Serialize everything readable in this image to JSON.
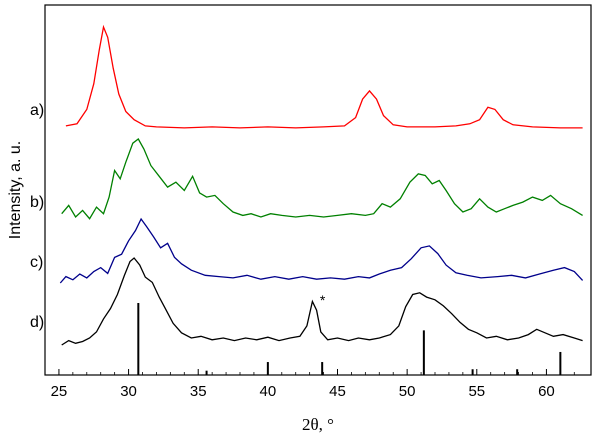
{
  "chart_data": {
    "type": "line",
    "title": "",
    "xlabel": "2θ, °",
    "ylabel": "Intensity, a. u.",
    "xlim": [
      24,
      63.2
    ],
    "x_ticks": [
      25,
      30,
      35,
      40,
      45,
      50,
      55,
      60
    ],
    "y_ticks": "none",
    "grid": false,
    "legend": "none",
    "series": [
      {
        "label": "a)",
        "color": "#ff0000",
        "points": [
          [
            25.5,
            0.04
          ],
          [
            26.3,
            0.06
          ],
          [
            27.0,
            0.2
          ],
          [
            27.5,
            0.45
          ],
          [
            27.9,
            0.78
          ],
          [
            28.2,
            1.0
          ],
          [
            28.5,
            0.9
          ],
          [
            28.9,
            0.6
          ],
          [
            29.3,
            0.35
          ],
          [
            29.8,
            0.18
          ],
          [
            30.4,
            0.1
          ],
          [
            31.2,
            0.04
          ],
          [
            32,
            0.03
          ],
          [
            34,
            0.02
          ],
          [
            36,
            0.03
          ],
          [
            38,
            0.02
          ],
          [
            40,
            0.03
          ],
          [
            42,
            0.02
          ],
          [
            44,
            0.03
          ],
          [
            45.5,
            0.04
          ],
          [
            46.3,
            0.12
          ],
          [
            46.8,
            0.3
          ],
          [
            47.3,
            0.38
          ],
          [
            47.8,
            0.3
          ],
          [
            48.3,
            0.14
          ],
          [
            49,
            0.05
          ],
          [
            50,
            0.03
          ],
          [
            52,
            0.03
          ],
          [
            53.5,
            0.04
          ],
          [
            54.5,
            0.06
          ],
          [
            55.2,
            0.1
          ],
          [
            55.8,
            0.22
          ],
          [
            56.3,
            0.2
          ],
          [
            56.9,
            0.1
          ],
          [
            57.6,
            0.05
          ],
          [
            59,
            0.03
          ],
          [
            61,
            0.02
          ],
          [
            62.6,
            0.02
          ]
        ]
      },
      {
        "label": "b)",
        "color": "#008000",
        "points": [
          [
            25.2,
            0.1
          ],
          [
            25.7,
            0.2
          ],
          [
            26.2,
            0.06
          ],
          [
            26.7,
            0.14
          ],
          [
            27.2,
            0.04
          ],
          [
            27.7,
            0.18
          ],
          [
            28.2,
            0.1
          ],
          [
            28.6,
            0.3
          ],
          [
            29.0,
            0.62
          ],
          [
            29.4,
            0.52
          ],
          [
            29.8,
            0.72
          ],
          [
            30.3,
            0.95
          ],
          [
            30.7,
            1.0
          ],
          [
            31.1,
            0.88
          ],
          [
            31.6,
            0.68
          ],
          [
            32.2,
            0.55
          ],
          [
            32.8,
            0.42
          ],
          [
            33.4,
            0.48
          ],
          [
            34.0,
            0.38
          ],
          [
            34.6,
            0.55
          ],
          [
            35.1,
            0.35
          ],
          [
            35.6,
            0.3
          ],
          [
            36.2,
            0.32
          ],
          [
            36.8,
            0.22
          ],
          [
            37.5,
            0.12
          ],
          [
            38.2,
            0.08
          ],
          [
            38.8,
            0.1
          ],
          [
            39.5,
            0.06
          ],
          [
            40.2,
            0.1
          ],
          [
            41,
            0.08
          ],
          [
            42,
            0.06
          ],
          [
            43,
            0.08
          ],
          [
            44,
            0.06
          ],
          [
            45,
            0.08
          ],
          [
            46,
            0.1
          ],
          [
            47,
            0.08
          ],
          [
            47.6,
            0.1
          ],
          [
            48.2,
            0.22
          ],
          [
            48.8,
            0.18
          ],
          [
            49.5,
            0.28
          ],
          [
            50.2,
            0.48
          ],
          [
            50.8,
            0.58
          ],
          [
            51.3,
            0.56
          ],
          [
            51.8,
            0.46
          ],
          [
            52.3,
            0.5
          ],
          [
            52.8,
            0.38
          ],
          [
            53.4,
            0.22
          ],
          [
            54,
            0.12
          ],
          [
            54.6,
            0.16
          ],
          [
            55.2,
            0.28
          ],
          [
            55.8,
            0.18
          ],
          [
            56.4,
            0.12
          ],
          [
            57,
            0.16
          ],
          [
            57.6,
            0.2
          ],
          [
            58.3,
            0.24
          ],
          [
            59,
            0.3
          ],
          [
            59.7,
            0.26
          ],
          [
            60.3,
            0.32
          ],
          [
            61,
            0.22
          ],
          [
            61.8,
            0.16
          ],
          [
            62.6,
            0.08
          ]
        ]
      },
      {
        "label": "c)",
        "color": "#00008b",
        "points": [
          [
            25.1,
            0.0
          ],
          [
            25.5,
            0.1
          ],
          [
            26,
            0.05
          ],
          [
            26.5,
            0.14
          ],
          [
            27,
            0.08
          ],
          [
            27.5,
            0.18
          ],
          [
            28,
            0.24
          ],
          [
            28.5,
            0.15
          ],
          [
            29,
            0.4
          ],
          [
            29.5,
            0.45
          ],
          [
            30,
            0.66
          ],
          [
            30.5,
            0.82
          ],
          [
            30.9,
            1.0
          ],
          [
            31.3,
            0.88
          ],
          [
            31.8,
            0.72
          ],
          [
            32.3,
            0.55
          ],
          [
            32.8,
            0.62
          ],
          [
            33.3,
            0.4
          ],
          [
            33.8,
            0.3
          ],
          [
            34.5,
            0.2
          ],
          [
            35.5,
            0.12
          ],
          [
            36.5,
            0.1
          ],
          [
            37.5,
            0.08
          ],
          [
            38.5,
            0.12
          ],
          [
            39.5,
            0.06
          ],
          [
            40.5,
            0.1
          ],
          [
            41.5,
            0.06
          ],
          [
            42.5,
            0.1
          ],
          [
            43.5,
            0.06
          ],
          [
            44.5,
            0.08
          ],
          [
            45.5,
            0.06
          ],
          [
            46.5,
            0.1
          ],
          [
            47.3,
            0.08
          ],
          [
            48,
            0.14
          ],
          [
            48.8,
            0.2
          ],
          [
            49.6,
            0.24
          ],
          [
            50.3,
            0.38
          ],
          [
            51,
            0.55
          ],
          [
            51.6,
            0.58
          ],
          [
            52.2,
            0.46
          ],
          [
            52.8,
            0.28
          ],
          [
            53.5,
            0.16
          ],
          [
            54.3,
            0.12
          ],
          [
            55.3,
            0.08
          ],
          [
            56.5,
            0.1
          ],
          [
            57.5,
            0.12
          ],
          [
            58.5,
            0.08
          ],
          [
            59.5,
            0.14
          ],
          [
            60.5,
            0.2
          ],
          [
            61.3,
            0.24
          ],
          [
            62,
            0.18
          ],
          [
            62.6,
            0.04
          ]
        ]
      },
      {
        "label": "d)",
        "color": "#000000",
        "points": [
          [
            25.2,
            0.0
          ],
          [
            25.7,
            0.05
          ],
          [
            26.2,
            0.02
          ],
          [
            26.7,
            0.04
          ],
          [
            27.2,
            0.08
          ],
          [
            27.7,
            0.15
          ],
          [
            28.2,
            0.3
          ],
          [
            28.7,
            0.42
          ],
          [
            29.2,
            0.58
          ],
          [
            29.7,
            0.8
          ],
          [
            30.1,
            0.96
          ],
          [
            30.4,
            1.0
          ],
          [
            30.8,
            0.92
          ],
          [
            31.2,
            0.78
          ],
          [
            31.7,
            0.72
          ],
          [
            32.2,
            0.55
          ],
          [
            32.7,
            0.4
          ],
          [
            33.2,
            0.25
          ],
          [
            33.8,
            0.14
          ],
          [
            34.5,
            0.08
          ],
          [
            35.2,
            0.1
          ],
          [
            36,
            0.06
          ],
          [
            36.8,
            0.08
          ],
          [
            37.6,
            0.05
          ],
          [
            38.4,
            0.08
          ],
          [
            39.2,
            0.06
          ],
          [
            40,
            0.09
          ],
          [
            40.8,
            0.05
          ],
          [
            41.6,
            0.08
          ],
          [
            42.3,
            0.1
          ],
          [
            42.8,
            0.22
          ],
          [
            43.2,
            0.5
          ],
          [
            43.5,
            0.4
          ],
          [
            43.8,
            0.15
          ],
          [
            44.3,
            0.06
          ],
          [
            45,
            0.08
          ],
          [
            45.8,
            0.05
          ],
          [
            46.5,
            0.08
          ],
          [
            47.3,
            0.06
          ],
          [
            48,
            0.08
          ],
          [
            48.8,
            0.12
          ],
          [
            49.4,
            0.22
          ],
          [
            49.9,
            0.44
          ],
          [
            50.4,
            0.58
          ],
          [
            50.9,
            0.6
          ],
          [
            51.4,
            0.55
          ],
          [
            52,
            0.52
          ],
          [
            52.6,
            0.45
          ],
          [
            53.2,
            0.36
          ],
          [
            53.8,
            0.26
          ],
          [
            54.4,
            0.18
          ],
          [
            55,
            0.14
          ],
          [
            55.7,
            0.08
          ],
          [
            56.4,
            0.1
          ],
          [
            57.2,
            0.06
          ],
          [
            58,
            0.08
          ],
          [
            58.7,
            0.12
          ],
          [
            59.3,
            0.18
          ],
          [
            59.9,
            0.14
          ],
          [
            60.5,
            0.1
          ],
          [
            61.2,
            0.12
          ],
          [
            62,
            0.08
          ],
          [
            62.6,
            0.05
          ]
        ]
      }
    ],
    "reference_peaks": [
      {
        "x": 30.7,
        "h": 1.0
      },
      {
        "x": 35.6,
        "h": 0.06
      },
      {
        "x": 40.0,
        "h": 0.18
      },
      {
        "x": 43.9,
        "h": 0.18
      },
      {
        "x": 51.2,
        "h": 0.62
      },
      {
        "x": 54.7,
        "h": 0.08
      },
      {
        "x": 57.9,
        "h": 0.08
      },
      {
        "x": 61.0,
        "h": 0.32
      }
    ],
    "annotations": [
      {
        "text": "*",
        "x": 43.3
      }
    ]
  }
}
